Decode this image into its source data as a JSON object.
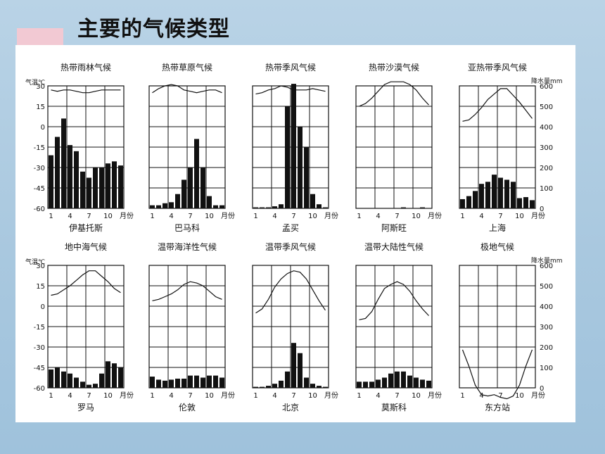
{
  "page_title": "主要的气候类型",
  "chart_data": [
    {
      "type": "bar+line",
      "title": "热带雨林气候",
      "city": "伊基托斯",
      "temp_axis": {
        "label": "气温℃",
        "ticks": [
          30,
          15,
          0,
          -15,
          -30,
          -45,
          -60
        ]
      },
      "months_ticks": [
        "1",
        "4",
        "7",
        "10",
        "月份"
      ],
      "temperature": [
        27,
        26,
        27,
        27,
        26,
        25,
        25,
        26,
        27,
        27,
        27,
        27
      ],
      "precipitation": [
        260,
        350,
        440,
        310,
        280,
        180,
        150,
        200,
        200,
        220,
        230,
        210
      ]
    },
    {
      "type": "bar+line",
      "title": "热带草原气候",
      "city": "巴马科",
      "months_ticks": [
        "1",
        "4",
        "7",
        "10",
        "月份"
      ],
      "temperature": [
        25,
        28,
        30,
        31,
        30,
        27,
        26,
        25,
        26,
        27,
        27,
        25
      ],
      "precipitation": [
        15,
        15,
        25,
        30,
        70,
        140,
        200,
        340,
        200,
        60,
        15,
        15
      ]
    },
    {
      "type": "bar+line",
      "title": "热带季风气候",
      "city": "孟买",
      "months_ticks": [
        "1",
        "4",
        "7",
        "10",
        "月份"
      ],
      "temperature": [
        24,
        25,
        27,
        28,
        30,
        29,
        27,
        27,
        27,
        28,
        27,
        26
      ],
      "precipitation": [
        5,
        5,
        5,
        10,
        20,
        500,
        610,
        400,
        300,
        70,
        20,
        5
      ]
    },
    {
      "type": "bar+line",
      "title": "热带沙漠气候",
      "city": "阿斯旺",
      "months_ticks": [
        "1",
        "4",
        "7",
        "10",
        "月份"
      ],
      "temperature": [
        15,
        17,
        21,
        26,
        31,
        33,
        33,
        33,
        31,
        27,
        21,
        16
      ],
      "precipitation": [
        0,
        0,
        0,
        0,
        0,
        0,
        0,
        5,
        0,
        0,
        5,
        0
      ]
    },
    {
      "type": "bar+line",
      "title": "亚热带季风气候",
      "city": "上海",
      "precip_axis": {
        "label": "降水量mm",
        "ticks": [
          600,
          500,
          400,
          300,
          200,
          100,
          0
        ]
      },
      "months_ticks": [
        "1",
        "4",
        "7",
        "10",
        "月份"
      ],
      "temperature": [
        4,
        5,
        9,
        14,
        20,
        24,
        28,
        28,
        23,
        18,
        12,
        6
      ],
      "precipitation": [
        45,
        60,
        85,
        120,
        130,
        165,
        150,
        140,
        130,
        50,
        55,
        40
      ]
    },
    {
      "type": "bar+line",
      "title": "地中海气候",
      "city": "罗马",
      "temp_axis": {
        "label": "气温℃",
        "ticks": [
          30,
          15,
          0,
          -15,
          -30,
          -45,
          -60
        ]
      },
      "months_ticks": [
        "1",
        "4",
        "7",
        "10",
        "月份"
      ],
      "temperature": [
        8,
        9,
        12,
        15,
        19,
        23,
        26,
        26,
        22,
        18,
        13,
        10
      ],
      "precipitation": [
        90,
        100,
        80,
        70,
        50,
        30,
        15,
        20,
        70,
        130,
        120,
        100
      ]
    },
    {
      "type": "bar+line",
      "title": "温带海洋性气候",
      "city": "伦敦",
      "months_ticks": [
        "1",
        "4",
        "7",
        "10",
        "月份"
      ],
      "temperature": [
        4,
        5,
        7,
        9,
        12,
        16,
        18,
        17,
        15,
        11,
        7,
        5
      ],
      "precipitation": [
        55,
        40,
        35,
        40,
        45,
        45,
        60,
        60,
        50,
        60,
        60,
        50
      ]
    },
    {
      "type": "bar+line",
      "title": "温带季风气候",
      "city": "北京",
      "months_ticks": [
        "1",
        "4",
        "7",
        "10",
        "月份"
      ],
      "temperature": [
        -5,
        -2,
        5,
        14,
        20,
        24,
        26,
        25,
        20,
        12,
        4,
        -3
      ],
      "precipitation": [
        5,
        5,
        10,
        20,
        35,
        80,
        220,
        170,
        50,
        20,
        10,
        5
      ]
    },
    {
      "type": "bar+line",
      "title": "温带大陆性气候",
      "city": "莫斯科",
      "months_ticks": [
        "1",
        "4",
        "7",
        "10",
        "月份"
      ],
      "temperature": [
        -10,
        -9,
        -4,
        5,
        13,
        16,
        18,
        16,
        11,
        4,
        -2,
        -7
      ],
      "precipitation": [
        30,
        30,
        30,
        40,
        50,
        70,
        80,
        80,
        60,
        50,
        40,
        35
      ]
    },
    {
      "type": "line",
      "title": "极地气候",
      "city": "东方站",
      "precip_axis": {
        "label": "降水量mm",
        "ticks": [
          600,
          500,
          400,
          300,
          200,
          100,
          0
        ]
      },
      "months_ticks": [
        "1",
        "4",
        "7",
        "10",
        "月份"
      ],
      "temperature": [
        -32,
        -44,
        -58,
        -65,
        -66,
        -65,
        -67,
        -68,
        -66,
        -58,
        -44,
        -32
      ]
    }
  ]
}
